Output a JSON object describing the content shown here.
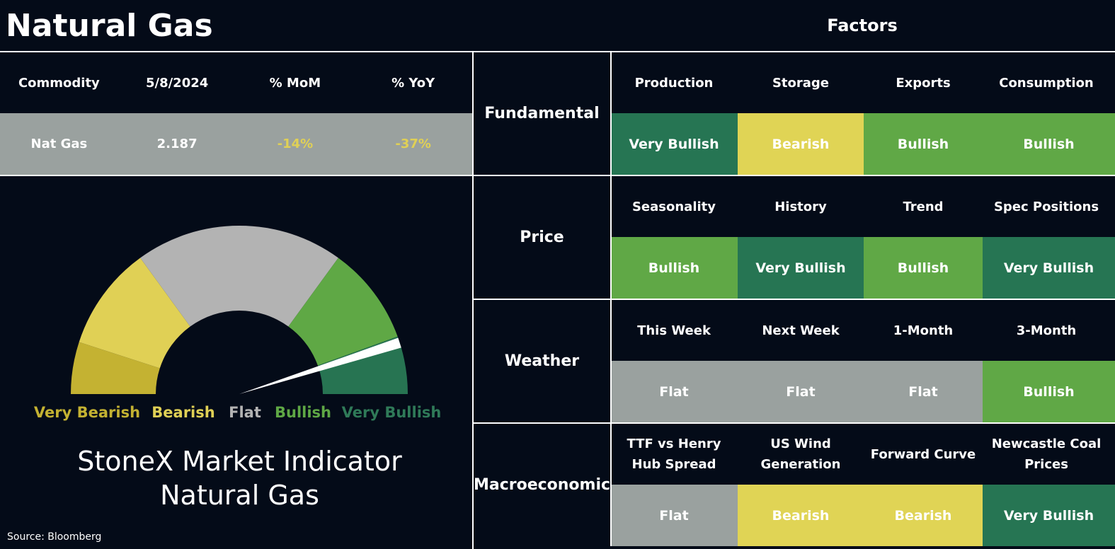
{
  "header": {
    "title": "Natural Gas",
    "factors_title": "Factors"
  },
  "commodity_table": {
    "headers": [
      "Commodity",
      "5/8/2024",
      "% MoM",
      "% YoY"
    ],
    "row": [
      "Nat Gas",
      "2.187",
      "-14%",
      "-37%"
    ]
  },
  "gauge": {
    "labels": [
      "Very Bearish",
      "Bearish",
      "Flat",
      "Bullish",
      "Very Bullish"
    ],
    "caption": [
      "StoneX Market Indicator",
      "Natural Gas"
    ]
  },
  "source": "Source: Bloomberg",
  "factors": [
    {
      "group": "Fundamental",
      "items": [
        {
          "label": "Production",
          "rating": "Very Bullish"
        },
        {
          "label": "Storage",
          "rating": "Bearish"
        },
        {
          "label": "Exports",
          "rating": "Bullish"
        },
        {
          "label": "Consumption",
          "rating": "Bullish"
        }
      ]
    },
    {
      "group": "Price",
      "items": [
        {
          "label": "Seasonality",
          "rating": "Bullish"
        },
        {
          "label": "History",
          "rating": "Very Bullish"
        },
        {
          "label": "Trend",
          "rating": "Bullish"
        },
        {
          "label": "Spec Positions",
          "rating": "Very Bullish"
        }
      ]
    },
    {
      "group": "Weather",
      "items": [
        {
          "label": "This Week",
          "rating": "Flat"
        },
        {
          "label": "Next Week",
          "rating": "Flat"
        },
        {
          "label": "1-Month",
          "rating": "Flat"
        },
        {
          "label": "3-Month",
          "rating": "Bullish"
        }
      ]
    },
    {
      "group": "Macroeconomic",
      "items": [
        {
          "label": "TTF vs Henry Hub Spread",
          "rating": "Flat"
        },
        {
          "label": "US Wind Generation",
          "rating": "Bearish"
        },
        {
          "label": "Forward Curve",
          "rating": "Bearish"
        },
        {
          "label": "Newcastle Coal Prices",
          "rating": "Very Bullish"
        }
      ]
    }
  ]
}
